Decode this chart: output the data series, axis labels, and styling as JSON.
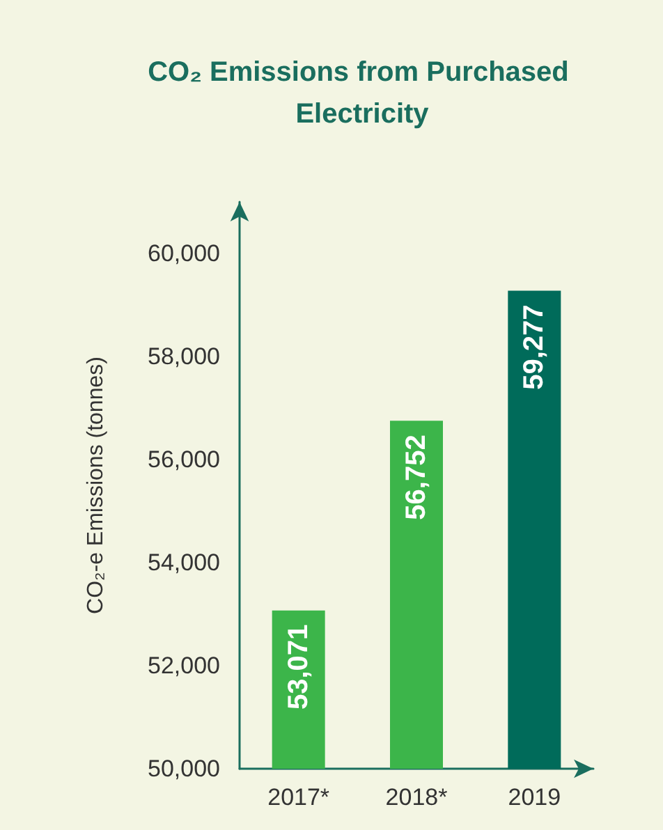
{
  "chart_data": {
    "type": "bar",
    "title": "CO₂ Emissions from Purchased Electricity",
    "ylabel": "CO₂-e Emissions (tonnes)",
    "categories": [
      "2017*",
      "2018*",
      "2019"
    ],
    "values": [
      53071,
      56752,
      59277
    ],
    "colors": [
      "#3cb54a",
      "#3cb54a",
      "#006b5a"
    ],
    "value_labels": [
      "53,071",
      "56,752",
      "59,277"
    ],
    "ylim": [
      50000,
      61000
    ],
    "yticks": [
      {
        "value": 50000,
        "label": "50,000"
      },
      {
        "value": 52000,
        "label": "52,000"
      },
      {
        "value": 54000,
        "label": "54,000"
      },
      {
        "value": 56000,
        "label": "56,000"
      },
      {
        "value": 58000,
        "label": "58,000"
      },
      {
        "value": 60000,
        "label": "60,000"
      }
    ],
    "grid": false
  }
}
